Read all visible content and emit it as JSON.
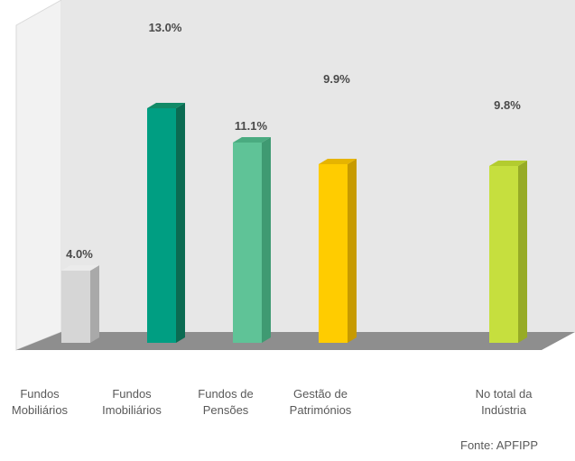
{
  "chart_data": {
    "type": "bar",
    "categories": [
      [
        "Fundos",
        "Mobiliários"
      ],
      [
        "Fundos",
        "Imobiliários"
      ],
      [
        "Fundos de",
        "Pensões"
      ],
      [
        "Gestão de",
        "Patrimónios"
      ],
      [
        "No total da",
        "Indústria"
      ]
    ],
    "values": [
      4.0,
      13.0,
      11.1,
      9.9,
      9.8
    ],
    "value_labels": [
      "4.0%",
      "13.0%",
      "11.1%",
      "9.9%",
      "9.8%"
    ],
    "colors": [
      "#d6d6d6",
      "#009e82",
      "#5fc397",
      "#ffcc00",
      "#c6df3e"
    ],
    "side_colors": [
      "#a9a9a9",
      "#0b6b52",
      "#3f9a72",
      "#c79a00",
      "#97ab26"
    ],
    "top_colors": [
      "#ebebeb",
      "#118a67",
      "#4aab80",
      "#e6b400",
      "#b3cc2f"
    ],
    "ylim": [
      0,
      15
    ],
    "grid": false,
    "legend": "none"
  },
  "source": "Fonte: APFIPP"
}
